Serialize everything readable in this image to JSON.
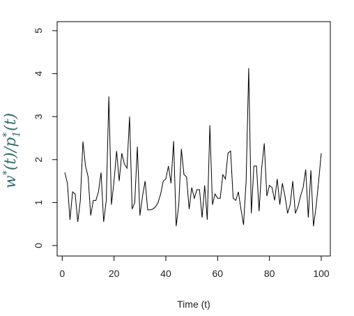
{
  "chart_data": {
    "type": "line",
    "title": "",
    "xlabel": "Time (t)",
    "ylabel": {
      "a": "w",
      "a_sup": "*",
      "a_arg": "(t)/",
      "b": "p",
      "b_sub": "1",
      "b_sup": "*",
      "b_arg": "(t)"
    },
    "xlim": [
      1,
      100
    ],
    "ylim": [
      0,
      5
    ],
    "xticks": [
      0,
      20,
      40,
      60,
      80,
      100
    ],
    "yticks": [
      0,
      1,
      2,
      3,
      4,
      5
    ],
    "grid": false,
    "line_color": "#000000",
    "ylabel_color": "#336b6b",
    "series": [
      {
        "values": [
          1.7,
          1.45,
          0.6,
          1.25,
          1.2,
          0.55,
          1.05,
          2.42,
          1.85,
          1.6,
          0.7,
          1.05,
          1.05,
          1.25,
          1.7,
          0.55,
          1.05,
          3.47,
          0.95,
          1.5,
          2.2,
          1.5,
          2.15,
          1.9,
          1.8,
          3.0,
          0.85,
          1.0,
          2.3,
          0.7,
          1.15,
          1.5,
          0.83,
          0.83,
          0.85,
          0.9,
          1.0,
          1.2,
          1.5,
          1.55,
          1.85,
          1.45,
          2.43,
          0.45,
          0.95,
          2.25,
          1.65,
          1.6,
          0.85,
          1.35,
          1.1,
          1.3,
          1.3,
          0.65,
          1.4,
          0.6,
          2.8,
          0.95,
          1.2,
          1.1,
          1.1,
          1.65,
          1.55,
          2.15,
          2.2,
          1.1,
          1.05,
          1.25,
          0.85,
          0.48,
          1.5,
          4.13,
          0.75,
          1.85,
          1.85,
          0.8,
          1.8,
          2.38,
          1.15,
          1.4,
          1.35,
          1.05,
          1.55,
          0.95,
          1.45,
          1.15,
          0.75,
          0.95,
          1.5,
          0.75,
          0.9,
          1.15,
          1.35,
          1.77,
          0.65,
          1.75,
          0.45,
          0.9,
          1.5,
          2.15
        ]
      }
    ]
  }
}
